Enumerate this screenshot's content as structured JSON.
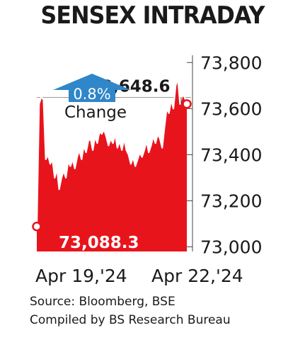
{
  "chart_data": {
    "type": "area",
    "title": "SENSEX INTRADAY",
    "x_labels": [
      "Apr 19,'24",
      "Apr 22,'24"
    ],
    "y_ticks": [
      "73,000",
      "73,200",
      "73,400",
      "73,600",
      "73,800"
    ],
    "ylim": [
      72980,
      73850
    ],
    "callouts": {
      "high": {
        "label": "73,648.6",
        "value": 73648.6
      },
      "start": {
        "label": "73,088.3",
        "value": 73088.3
      }
    },
    "change": {
      "value": "0.8%",
      "label": "Change",
      "direction": "up"
    },
    "series": [
      {
        "values": [
          73088.3,
          73620,
          73650,
          73640,
          73380,
          73400,
          73360,
          73380,
          73300,
          73340,
          73250,
          73300,
          73330,
          73300,
          73370,
          73350,
          73380,
          73340,
          73390,
          73420,
          73380,
          73440,
          73410,
          73460,
          73470,
          73420,
          73480,
          73450,
          73500,
          73490,
          73510,
          73480,
          73440,
          73470,
          73450,
          73490,
          73430,
          73460,
          73420,
          73470,
          73420,
          73400,
          73360,
          73390,
          73350,
          73380,
          73410,
          73390,
          73420,
          73460,
          73410,
          73440,
          73480,
          73450,
          73490,
          73470,
          73430,
          73520,
          73600,
          73580,
          73640,
          73600,
          73700,
          73730,
          73620,
          73660,
          73650,
          73620
        ]
      }
    ],
    "colors": {
      "fill": "#e8141c",
      "line": "#ffffff",
      "marker_fill": "#ffffff",
      "marker_stroke": "#e8141c",
      "arrow": "#2f86c8",
      "text": "#1a1a1a"
    }
  },
  "footer": {
    "source": "Source: Bloomberg, BSE",
    "compiled": "Compiled by BS Research Bureau"
  }
}
